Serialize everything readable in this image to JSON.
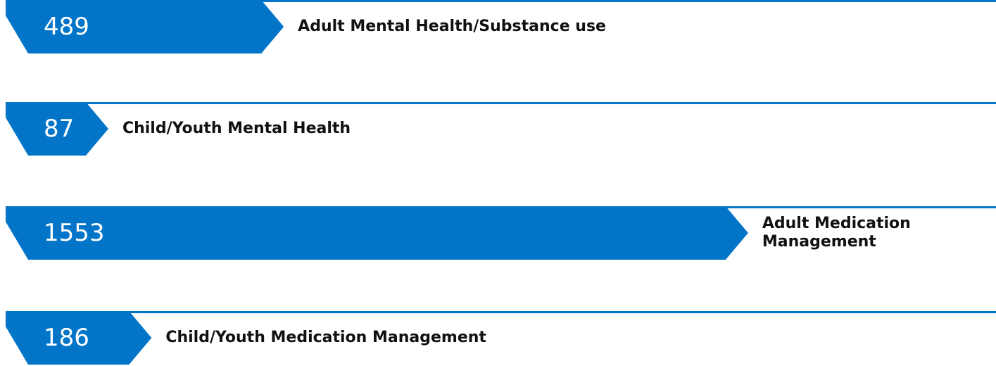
{
  "chart_data": {
    "type": "bar",
    "categories": [
      "Adult Mental Health/Substance use",
      "Child/Youth Mental Health",
      "Adult Medication Management",
      "Child/Youth Medication Management"
    ],
    "values": [
      489,
      87,
      1553,
      186
    ],
    "color": "#0275c9"
  }
}
